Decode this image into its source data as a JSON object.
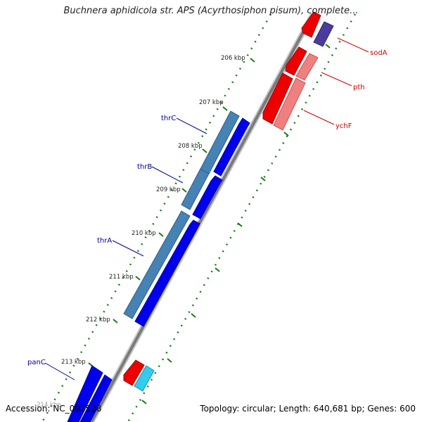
{
  "title": "Buchnera aphidicola str. APS (Acyrthosiphon pisum), complete...",
  "ruler": {
    "ticks": [
      "206 kbp",
      "207 kbp",
      "208 kbp",
      "209 kbp",
      "210 kbp",
      "211 kbp",
      "212 kbp",
      "213 kbp",
      "214 kbp"
    ]
  },
  "genes": {
    "left": [
      "thrC",
      "thrB",
      "thrA",
      "panC"
    ],
    "right": [
      "sodA",
      "pth",
      "ychF"
    ]
  },
  "colors": {
    "left_label": "#00008b",
    "right_label": "#cc0000",
    "tick_green": "#1a7a1a",
    "backbone": "#808080",
    "cds_blue": "#0000ee",
    "gene_steel": "#4682b4",
    "cds_red": "#ee0000",
    "gene_pink": "#f08080",
    "cds_purple": "#4b3c9c",
    "cds_cyan": "#33ccee"
  },
  "footer": {
    "accession": "Accession: NC_002528",
    "info": "Topology: circular; Length: 640,681 bp; Genes: 600"
  }
}
